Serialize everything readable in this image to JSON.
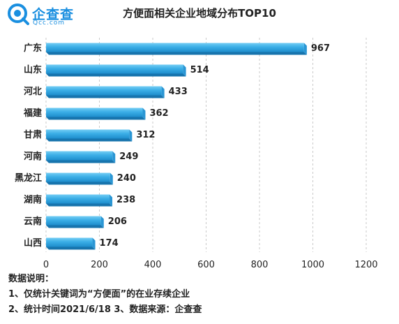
{
  "brand": {
    "logo_main": "企查查",
    "logo_sub": "Qcc.com",
    "accent_color": "#1a8fe0"
  },
  "chart_data": {
    "type": "bar",
    "orientation": "horizontal",
    "title": "方便面相关企业地域分布TOP10",
    "categories": [
      "广东",
      "山东",
      "河北",
      "福建",
      "甘肃",
      "河南",
      "黑龙江",
      "湖南",
      "云南",
      "山西"
    ],
    "values": [
      967,
      514,
      433,
      362,
      312,
      249,
      240,
      238,
      206,
      174
    ],
    "xlim": [
      0,
      1200
    ],
    "xticks": [
      "0",
      "200",
      "400",
      "600",
      "800",
      "1000",
      "1200"
    ],
    "grid": "vertical-dashed",
    "bar_color": "#3aaee6",
    "data_labels": true
  },
  "notes": {
    "heading": "数据说明：",
    "line1": "1、仅统计关键词为“方便面”的在业存续企业",
    "line2": "2、统计时间2021/6/18   3、数据来源：企查查"
  }
}
